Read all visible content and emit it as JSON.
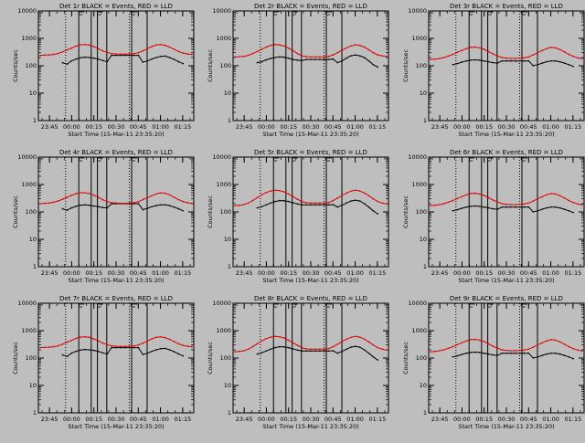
{
  "figure": {
    "background": "#bebebe",
    "ink_color": "#000000",
    "lld_color": "#e00000"
  },
  "chart_data": [
    {
      "type": "line",
      "title": "Det 1r BLACK = Events, RED = LLD",
      "xlabel": "Start Time (15-Mar-11 23:35:20)",
      "ylabel": "Counts/sec",
      "x_ticks": [
        "23:45",
        "00:00",
        "00:15",
        "00:30",
        "00:45",
        "01:00",
        "01:15"
      ],
      "y_ticks": [
        "1",
        "10",
        "100",
        "1000",
        "10000"
      ],
      "ylim": [
        1,
        10000
      ],
      "yscale": "log",
      "series": [
        {
          "name": "Events",
          "color": "#000000",
          "values": [
            null,
            null,
            null,
            null,
            null,
            130,
            115,
            150,
            175,
            195,
            205,
            200,
            190,
            175,
            155,
            140,
            240,
            240,
            240,
            240,
            240,
            240,
            240,
            135,
            150,
            175,
            200,
            220,
            225,
            200,
            170,
            140,
            120,
            null,
            null
          ]
        },
        {
          "name": "LLD",
          "color": "#e00000",
          "values": [
            240,
            245,
            250,
            260,
            280,
            320,
            380,
            440,
            520,
            580,
            600,
            570,
            500,
            420,
            350,
            310,
            280,
            270,
            265,
            265,
            270,
            275,
            300,
            350,
            420,
            500,
            570,
            600,
            560,
            480,
            400,
            330,
            290,
            270,
            260
          ]
        }
      ]
    },
    {
      "type": "line",
      "title": "Det 2r BLACK = Events, RED = LLD",
      "xlabel": "Start Time (15-Mar-11 23:35:20)",
      "ylabel": "Counts/sec",
      "x_ticks": [
        "23:45",
        "00:00",
        "00:15",
        "00:30",
        "00:45",
        "01:00",
        "01:15"
      ],
      "y_ticks": [
        "1",
        "10",
        "100",
        "1000",
        "10000"
      ],
      "ylim": [
        1,
        10000
      ],
      "yscale": "log",
      "series": [
        {
          "name": "Events",
          "color": "#000000",
          "values": [
            null,
            null,
            null,
            null,
            null,
            130,
            140,
            165,
            185,
            200,
            210,
            205,
            190,
            170,
            160,
            155,
            170,
            170,
            170,
            170,
            170,
            170,
            175,
            130,
            150,
            190,
            230,
            250,
            230,
            200,
            150,
            110,
            90,
            null,
            null
          ]
        },
        {
          "name": "LLD",
          "color": "#e00000",
          "values": [
            210,
            215,
            220,
            240,
            280,
            330,
            400,
            480,
            560,
            600,
            580,
            530,
            440,
            360,
            280,
            230,
            215,
            210,
            210,
            210,
            210,
            220,
            250,
            300,
            370,
            450,
            530,
            580,
            560,
            480,
            380,
            300,
            250,
            230,
            220
          ]
        }
      ]
    },
    {
      "type": "line",
      "title": "Det 3r BLACK = Events, RED = LLD",
      "xlabel": "Start Time (15-Mar-11 23:35:20)",
      "ylabel": "Counts/sec",
      "x_ticks": [
        "23:45",
        "00:00",
        "00:15",
        "00:30",
        "00:45",
        "01:00",
        "01:15"
      ],
      "y_ticks": [
        "1",
        "10",
        "100",
        "1000",
        "10000"
      ],
      "ylim": [
        1,
        10000
      ],
      "yscale": "log",
      "series": [
        {
          "name": "Events",
          "color": "#000000",
          "values": [
            null,
            null,
            null,
            null,
            null,
            110,
            120,
            135,
            150,
            160,
            165,
            160,
            150,
            140,
            130,
            125,
            150,
            150,
            150,
            150,
            150,
            150,
            150,
            100,
            110,
            125,
            140,
            150,
            150,
            140,
            125,
            110,
            95,
            null,
            null
          ]
        },
        {
          "name": "LLD",
          "color": "#e00000",
          "values": [
            170,
            175,
            185,
            200,
            225,
            260,
            310,
            360,
            420,
            470,
            480,
            450,
            400,
            330,
            270,
            230,
            200,
            190,
            185,
            185,
            190,
            195,
            210,
            250,
            300,
            360,
            420,
            470,
            450,
            390,
            320,
            260,
            220,
            195,
            180
          ]
        }
      ]
    },
    {
      "type": "line",
      "title": "Det 4r BLACK = Events, RED = LLD",
      "xlabel": "Start Time (15-Mar-11 23:35:20)",
      "ylabel": "Counts/sec",
      "x_ticks": [
        "23:45",
        "00:00",
        "00:15",
        "00:30",
        "00:45",
        "01:00",
        "01:15"
      ],
      "y_ticks": [
        "1",
        "10",
        "100",
        "1000",
        "10000"
      ],
      "ylim": [
        1,
        10000
      ],
      "yscale": "log",
      "series": [
        {
          "name": "Events",
          "color": "#000000",
          "values": [
            null,
            null,
            null,
            null,
            null,
            130,
            115,
            140,
            160,
            175,
            180,
            175,
            165,
            155,
            145,
            140,
            200,
            200,
            200,
            200,
            200,
            200,
            200,
            120,
            135,
            155,
            170,
            180,
            180,
            170,
            150,
            130,
            110,
            null,
            null
          ]
        },
        {
          "name": "LLD",
          "color": "#e00000",
          "values": [
            200,
            205,
            210,
            225,
            250,
            290,
            340,
            400,
            460,
            500,
            500,
            470,
            410,
            340,
            280,
            240,
            215,
            210,
            205,
            205,
            210,
            215,
            235,
            280,
            330,
            390,
            450,
            500,
            480,
            420,
            340,
            280,
            240,
            215,
            205
          ]
        }
      ]
    },
    {
      "type": "line",
      "title": "Det 5r BLACK = Events, RED = LLD",
      "xlabel": "Start Time (15-Mar-11 23:35:20)",
      "ylabel": "Counts/sec",
      "x_ticks": [
        "23:45",
        "00:00",
        "00:15",
        "00:30",
        "00:45",
        "01:00",
        "01:15"
      ],
      "y_ticks": [
        "1",
        "10",
        "100",
        "1000",
        "10000"
      ],
      "ylim": [
        1,
        10000
      ],
      "yscale": "log",
      "series": [
        {
          "name": "Events",
          "color": "#000000",
          "values": [
            null,
            null,
            null,
            null,
            null,
            140,
            155,
            180,
            210,
            240,
            260,
            255,
            240,
            215,
            195,
            180,
            180,
            180,
            180,
            180,
            180,
            180,
            185,
            150,
            175,
            210,
            250,
            270,
            250,
            200,
            150,
            110,
            85,
            null,
            null
          ]
        },
        {
          "name": "LLD",
          "color": "#e00000",
          "values": [
            170,
            175,
            185,
            210,
            260,
            330,
            420,
            510,
            580,
            620,
            600,
            540,
            450,
            360,
            290,
            240,
            215,
            210,
            210,
            210,
            210,
            220,
            260,
            320,
            400,
            490,
            570,
            620,
            580,
            490,
            390,
            300,
            240,
            210,
            195
          ]
        }
      ]
    },
    {
      "type": "line",
      "title": "Det 6r BLACK = Events, RED = LLD",
      "xlabel": "Start Time (15-Mar-11 23:35:20)",
      "ylabel": "Counts/sec",
      "x_ticks": [
        "23:45",
        "00:00",
        "00:15",
        "00:30",
        "00:45",
        "01:00",
        "01:15"
      ],
      "y_ticks": [
        "1",
        "10",
        "100",
        "1000",
        "10000"
      ],
      "ylim": [
        1,
        10000
      ],
      "yscale": "log",
      "series": [
        {
          "name": "Events",
          "color": "#000000",
          "values": [
            null,
            null,
            null,
            null,
            null,
            110,
            120,
            135,
            150,
            160,
            165,
            160,
            150,
            140,
            130,
            125,
            150,
            150,
            150,
            150,
            150,
            150,
            150,
            100,
            110,
            125,
            140,
            150,
            150,
            140,
            125,
            110,
            95,
            null,
            null
          ]
        },
        {
          "name": "LLD",
          "color": "#e00000",
          "values": [
            170,
            175,
            185,
            200,
            225,
            260,
            310,
            360,
            420,
            470,
            480,
            450,
            400,
            330,
            270,
            230,
            200,
            190,
            185,
            185,
            190,
            195,
            210,
            250,
            300,
            360,
            420,
            470,
            450,
            390,
            320,
            260,
            220,
            195,
            180
          ]
        }
      ]
    },
    {
      "type": "line",
      "title": "Det 7r BLACK = Events, RED = LLD",
      "xlabel": "Start Time (15-Mar-11 23:35:20)",
      "ylabel": "Counts/sec",
      "x_ticks": [
        "23:45",
        "00:00",
        "00:15",
        "00:30",
        "00:45",
        "01:00",
        "01:15"
      ],
      "y_ticks": [
        "1",
        "10",
        "100",
        "1000",
        "10000"
      ],
      "ylim": [
        1,
        10000
      ],
      "yscale": "log",
      "series": [
        {
          "name": "Events",
          "color": "#000000",
          "values": [
            null,
            null,
            null,
            null,
            null,
            130,
            115,
            150,
            175,
            195,
            205,
            200,
            190,
            175,
            155,
            140,
            240,
            240,
            240,
            240,
            240,
            240,
            240,
            135,
            150,
            175,
            200,
            220,
            225,
            200,
            170,
            140,
            120,
            null,
            null
          ]
        },
        {
          "name": "LLD",
          "color": "#e00000",
          "values": [
            240,
            245,
            250,
            260,
            280,
            320,
            380,
            440,
            520,
            580,
            600,
            570,
            500,
            420,
            350,
            310,
            280,
            270,
            265,
            265,
            270,
            275,
            300,
            350,
            420,
            500,
            570,
            600,
            560,
            480,
            400,
            330,
            290,
            270,
            260
          ]
        }
      ]
    },
    {
      "type": "line",
      "title": "Det 8r BLACK = Events, RED = LLD",
      "xlabel": "Start Time (15-Mar-11 23:35:20)",
      "ylabel": "Counts/sec",
      "x_ticks": [
        "23:45",
        "00:00",
        "00:15",
        "00:30",
        "00:45",
        "01:00",
        "01:15"
      ],
      "y_ticks": [
        "1",
        "10",
        "100",
        "1000",
        "10000"
      ],
      "ylim": [
        1,
        10000
      ],
      "yscale": "log",
      "series": [
        {
          "name": "Events",
          "color": "#000000",
          "values": [
            null,
            null,
            null,
            null,
            null,
            140,
            155,
            180,
            210,
            240,
            260,
            255,
            240,
            215,
            195,
            180,
            180,
            180,
            180,
            180,
            180,
            180,
            185,
            150,
            175,
            210,
            250,
            270,
            250,
            200,
            150,
            110,
            85,
            null,
            null
          ]
        },
        {
          "name": "LLD",
          "color": "#e00000",
          "values": [
            170,
            175,
            185,
            210,
            260,
            330,
            420,
            510,
            580,
            620,
            600,
            540,
            450,
            360,
            290,
            240,
            215,
            210,
            210,
            210,
            210,
            220,
            260,
            320,
            400,
            490,
            570,
            620,
            580,
            490,
            390,
            300,
            240,
            210,
            195
          ]
        }
      ]
    },
    {
      "type": "line",
      "title": "Det 9r BLACK = Events, RED = LLD",
      "xlabel": "Start Time (15-Mar-11 23:35:20)",
      "ylabel": "Counts/sec",
      "x_ticks": [
        "23:45",
        "00:00",
        "00:15",
        "00:30",
        "00:45",
        "01:00",
        "01:15"
      ],
      "y_ticks": [
        "1",
        "10",
        "100",
        "1000",
        "10000"
      ],
      "ylim": [
        1,
        10000
      ],
      "yscale": "log",
      "series": [
        {
          "name": "Events",
          "color": "#000000",
          "values": [
            null,
            null,
            null,
            null,
            null,
            110,
            120,
            135,
            150,
            160,
            165,
            160,
            150,
            140,
            130,
            125,
            150,
            150,
            150,
            150,
            150,
            150,
            150,
            100,
            110,
            125,
            140,
            150,
            150,
            140,
            125,
            110,
            95,
            null,
            null
          ]
        },
        {
          "name": "LLD",
          "color": "#e00000",
          "values": [
            170,
            175,
            185,
            200,
            225,
            260,
            310,
            360,
            420,
            470,
            480,
            450,
            400,
            330,
            270,
            230,
            200,
            190,
            185,
            185,
            190,
            195,
            210,
            250,
            300,
            360,
            420,
            470,
            450,
            390,
            320,
            260,
            220,
            195,
            180
          ]
        }
      ]
    }
  ]
}
